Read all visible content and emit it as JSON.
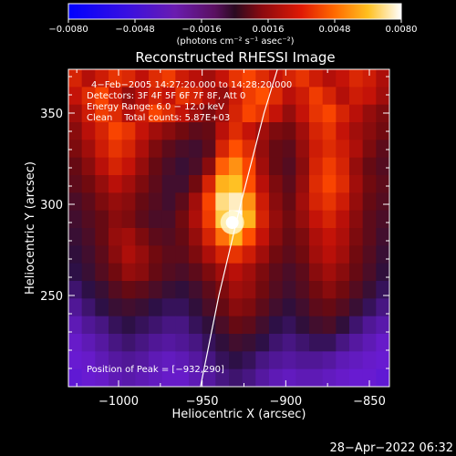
{
  "chart_data": {
    "type": "heatmap",
    "title": "Reconstructed RHESSI Image",
    "xlabel": "Heliocentric X (arcsec)",
    "ylabel": "Heliocentric Y (arcsec)",
    "xlim": [
      -1030,
      -838
    ],
    "ylim": [
      200,
      374
    ],
    "x_ticks": [
      -1000,
      -950,
      -900,
      -850
    ],
    "x_tick_labels": [
      "−1000",
      "−950",
      "−900",
      "−850"
    ],
    "y_ticks": [
      250,
      300,
      350
    ],
    "y_tick_labels": [
      "250",
      "300",
      "350"
    ],
    "colorbar": {
      "min": -0.008,
      "max": 0.008,
      "ticks": [
        -0.008,
        -0.0048,
        -0.0016,
        0.0016,
        0.0048,
        0.008
      ],
      "tick_labels": [
        "−0.0080",
        "−0.0048",
        "−0.0016",
        "0.0016",
        "0.0048",
        "0.0080"
      ],
      "units": "(photons cm⁻² s⁻¹ asec⁻²)"
    },
    "annotations": [
      "4−Feb−2005 14:27:20.000 to 14:28:20.000",
      "Detectors: 3F 4F 5F 6F 7F 8F, Att 0",
      "Energy Range: 6.0 − 12.0 keV",
      "Clean    Total counts: 5.87E+03"
    ],
    "peak_label": "Position of Peak = [−932,290]",
    "peak": {
      "x": -932,
      "y": 290
    },
    "limb_curve": [
      [
        -951,
        200
      ],
      [
        -940,
        250
      ],
      [
        -927,
        300
      ],
      [
        -913,
        350
      ],
      [
        -905,
        374
      ]
    ],
    "image_colors": {
      "background": "#000000",
      "colormap": [
        "#0000ff",
        "#6a1cd0",
        "#2a1040",
        "#6a0a10",
        "#c01008",
        "#ff4a00",
        "#ffc020",
        "#ffffff"
      ]
    },
    "intensity_map": {
      "rows_top_to_bottom": [
        [
          0.62,
          0.55,
          0.6,
          0.66,
          0.63,
          0.57,
          0.64,
          0.68,
          0.6,
          0.56,
          0.52,
          0.58,
          0.66,
          0.7,
          0.64,
          0.58,
          0.62,
          0.66,
          0.6,
          0.55,
          0.58,
          0.63,
          0.6,
          0.54
        ],
        [
          0.58,
          0.64,
          0.7,
          0.6,
          0.5,
          0.56,
          0.62,
          0.58,
          0.66,
          0.62,
          0.55,
          0.5,
          0.6,
          0.68,
          0.72,
          0.64,
          0.56,
          0.6,
          0.68,
          0.62,
          0.55,
          0.6,
          0.58,
          0.52
        ],
        [
          0.52,
          0.6,
          0.68,
          0.64,
          0.55,
          0.6,
          0.7,
          0.64,
          0.58,
          0.52,
          0.46,
          0.52,
          0.62,
          0.7,
          0.66,
          0.58,
          0.5,
          0.58,
          0.66,
          0.7,
          0.62,
          0.56,
          0.5,
          0.46
        ],
        [
          0.48,
          0.56,
          0.62,
          0.7,
          0.66,
          0.58,
          0.52,
          0.48,
          0.44,
          0.4,
          0.42,
          0.56,
          0.64,
          0.58,
          0.52,
          0.46,
          0.44,
          0.52,
          0.62,
          0.66,
          0.58,
          0.52,
          0.48,
          0.44
        ],
        [
          0.46,
          0.52,
          0.6,
          0.66,
          0.62,
          0.54,
          0.46,
          0.4,
          0.36,
          0.34,
          0.4,
          0.62,
          0.72,
          0.64,
          0.5,
          0.42,
          0.4,
          0.5,
          0.6,
          0.64,
          0.6,
          0.54,
          0.46,
          0.4
        ],
        [
          0.42,
          0.48,
          0.56,
          0.62,
          0.58,
          0.5,
          0.42,
          0.36,
          0.32,
          0.36,
          0.48,
          0.74,
          0.8,
          0.7,
          0.52,
          0.42,
          0.38,
          0.48,
          0.62,
          0.68,
          0.62,
          0.5,
          0.42,
          0.38
        ],
        [
          0.4,
          0.44,
          0.5,
          0.56,
          0.52,
          0.46,
          0.4,
          0.34,
          0.34,
          0.44,
          0.62,
          0.84,
          0.86,
          0.72,
          0.56,
          0.46,
          0.4,
          0.5,
          0.64,
          0.7,
          0.64,
          0.52,
          0.44,
          0.4
        ],
        [
          0.36,
          0.4,
          0.46,
          0.5,
          0.48,
          0.42,
          0.38,
          0.34,
          0.4,
          0.52,
          0.7,
          0.92,
          0.96,
          0.8,
          0.6,
          0.48,
          0.42,
          0.52,
          0.62,
          0.66,
          0.6,
          0.5,
          0.42,
          0.38
        ],
        [
          0.34,
          0.38,
          0.42,
          0.48,
          0.46,
          0.4,
          0.36,
          0.36,
          0.44,
          0.54,
          0.68,
          0.88,
          1.0,
          0.84,
          0.62,
          0.5,
          0.44,
          0.5,
          0.58,
          0.62,
          0.56,
          0.48,
          0.4,
          0.36
        ],
        [
          0.32,
          0.36,
          0.42,
          0.5,
          0.52,
          0.46,
          0.4,
          0.38,
          0.42,
          0.5,
          0.62,
          0.76,
          0.84,
          0.72,
          0.58,
          0.48,
          0.42,
          0.46,
          0.54,
          0.58,
          0.54,
          0.46,
          0.4,
          0.34
        ],
        [
          0.3,
          0.34,
          0.4,
          0.48,
          0.54,
          0.5,
          0.44,
          0.4,
          0.4,
          0.46,
          0.54,
          0.62,
          0.66,
          0.6,
          0.52,
          0.44,
          0.4,
          0.44,
          0.52,
          0.56,
          0.52,
          0.44,
          0.38,
          0.32
        ],
        [
          0.28,
          0.32,
          0.38,
          0.44,
          0.5,
          0.48,
          0.42,
          0.38,
          0.36,
          0.4,
          0.46,
          0.52,
          0.56,
          0.52,
          0.46,
          0.4,
          0.36,
          0.4,
          0.48,
          0.52,
          0.48,
          0.42,
          0.36,
          0.3
        ],
        [
          0.24,
          0.28,
          0.32,
          0.38,
          0.42,
          0.4,
          0.36,
          0.32,
          0.3,
          0.34,
          0.4,
          0.46,
          0.52,
          0.5,
          0.44,
          0.38,
          0.34,
          0.38,
          0.44,
          0.48,
          0.44,
          0.38,
          0.32,
          0.26
        ],
        [
          0.2,
          0.24,
          0.28,
          0.32,
          0.34,
          0.32,
          0.28,
          0.26,
          0.26,
          0.3,
          0.36,
          0.42,
          0.48,
          0.46,
          0.4,
          0.34,
          0.3,
          0.34,
          0.4,
          0.42,
          0.38,
          0.32,
          0.26,
          0.22
        ],
        [
          0.17,
          0.2,
          0.22,
          0.26,
          0.28,
          0.26,
          0.24,
          0.22,
          0.22,
          0.26,
          0.3,
          0.36,
          0.42,
          0.4,
          0.34,
          0.28,
          0.26,
          0.3,
          0.34,
          0.36,
          0.3,
          0.24,
          0.2,
          0.18
        ],
        [
          0.15,
          0.17,
          0.19,
          0.22,
          0.24,
          0.22,
          0.2,
          0.19,
          0.2,
          0.22,
          0.26,
          0.3,
          0.34,
          0.32,
          0.28,
          0.24,
          0.22,
          0.24,
          0.26,
          0.26,
          0.22,
          0.19,
          0.17,
          0.15
        ],
        [
          0.14,
          0.15,
          0.17,
          0.19,
          0.2,
          0.19,
          0.17,
          0.16,
          0.17,
          0.19,
          0.22,
          0.26,
          0.28,
          0.26,
          0.22,
          0.2,
          0.19,
          0.2,
          0.2,
          0.19,
          0.17,
          0.16,
          0.15,
          0.14
        ],
        [
          0.13,
          0.14,
          0.15,
          0.17,
          0.18,
          0.17,
          0.16,
          0.15,
          0.15,
          0.17,
          0.19,
          0.22,
          0.24,
          0.22,
          0.19,
          0.17,
          0.16,
          0.17,
          0.17,
          0.16,
          0.15,
          0.14,
          0.14,
          0.13
        ]
      ]
    }
  },
  "footer": {
    "timestamp": "28−Apr−2022 06:32"
  }
}
